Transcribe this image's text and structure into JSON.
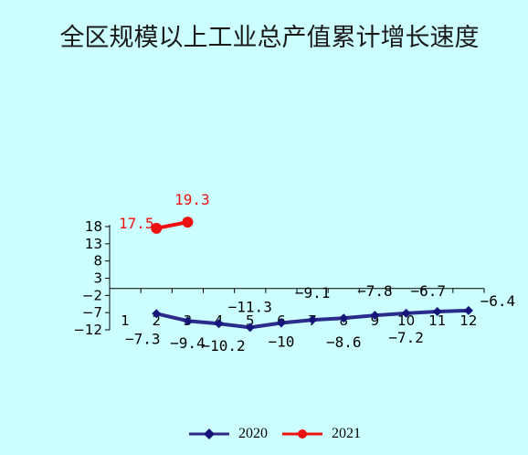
{
  "chart_data": {
    "type": "line",
    "title": "全区规模以上工业总产值累计增长速度",
    "categories": [
      "1",
      "2",
      "3",
      "4",
      "5",
      "6",
      "7",
      "8",
      "9",
      "10",
      "11",
      "12"
    ],
    "y_ticks": [
      "18",
      "13",
      "8",
      "3",
      "−2",
      "−7",
      "−12"
    ],
    "ylim": [
      -12,
      18
    ],
    "series": [
      {
        "name": "2020",
        "color": "#2b2b8c",
        "marker": "diamond",
        "x": [
          "2",
          "3",
          "4",
          "5",
          "6",
          "7",
          "8",
          "9",
          "10",
          "11",
          "12"
        ],
        "values": [
          -7.3,
          -9.4,
          -10.2,
          -11.3,
          -10,
          -9.1,
          -8.6,
          -7.8,
          -7.2,
          -6.7,
          -6.4
        ],
        "labels": [
          "−7.3",
          "−9.4",
          "−10.2",
          "−11.3",
          "−10",
          "−9.1",
          "−8.6",
          "−7.8",
          "−7.2",
          "−6.7",
          "−6.4"
        ]
      },
      {
        "name": "2021",
        "color": "#ee1111",
        "marker": "circle",
        "x": [
          "2",
          "3"
        ],
        "values": [
          17.5,
          19.3
        ],
        "labels": [
          "17.5",
          "19.3"
        ]
      }
    ],
    "legend_position": "bottom",
    "grid": false
  }
}
